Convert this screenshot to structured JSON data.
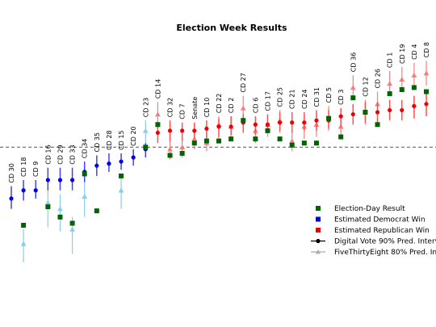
{
  "chart_data": {
    "type": "scatter",
    "title": "Election Week Results",
    "xlabel": "",
    "ylabel": "",
    "ylim": [
      -0.6,
      0.5
    ],
    "reference_line": 0,
    "colors": {
      "election_day": "#006400",
      "dem": "#0000ee",
      "rep": "#ee0000",
      "fte_dem": "#87ceeb",
      "fte_rep": "#f08080",
      "dem_interval": "#4040ff",
      "rep_interval": "#ff5050"
    },
    "legend": {
      "placement": "right",
      "entries": [
        {
          "label": "Election-Day Result",
          "icon": "square",
          "color": "#006400"
        },
        {
          "label": "Estimated Democrat Win",
          "icon": "square",
          "color": "#0000ee"
        },
        {
          "label": "Estimated Republican Win",
          "icon": "square",
          "color": "#ee0000"
        },
        {
          "label": "Digital Vote 90% Pred. Interval",
          "icon": "line-dot",
          "color": "#000000"
        },
        {
          "label": "FiveThirtyEight 80% Pred. Interval",
          "icon": "line-triangle",
          "color": "#aaaaaa"
        }
      ]
    },
    "districts": [
      {
        "label": "CD 30",
        "party": "D",
        "dv": -0.25,
        "dv_lo": -0.3,
        "dv_hi": -0.19,
        "fte": null,
        "result": null
      },
      {
        "label": "CD 18",
        "party": "D",
        "dv": -0.21,
        "dv_lo": -0.26,
        "dv_hi": -0.16,
        "fte": -0.47,
        "fte_lo": -0.56,
        "fte_hi": -0.4,
        "result": -0.38
      },
      {
        "label": "CD 9",
        "party": "D",
        "dv": -0.21,
        "dv_lo": -0.25,
        "dv_hi": -0.16,
        "fte": null,
        "result": null
      },
      {
        "label": "CD 16",
        "party": "D",
        "dv": -0.16,
        "dv_lo": -0.21,
        "dv_hi": -0.1,
        "fte": -0.27,
        "fte_lo": -0.39,
        "fte_hi": -0.2,
        "result": -0.29
      },
      {
        "label": "CD 29",
        "party": "D",
        "dv": -0.16,
        "dv_lo": -0.21,
        "dv_hi": -0.1,
        "fte": -0.3,
        "fte_lo": -0.41,
        "fte_hi": -0.23,
        "result": -0.34
      },
      {
        "label": "CD 33",
        "party": "D",
        "dv": -0.16,
        "dv_lo": -0.21,
        "dv_hi": -0.1,
        "fte": -0.4,
        "fte_lo": -0.52,
        "fte_hi": -0.34,
        "result": -0.37
      },
      {
        "label": "CD 34",
        "party": "D",
        "dv": -0.12,
        "dv_lo": -0.17,
        "dv_hi": -0.07,
        "fte": -0.24,
        "fte_lo": -0.34,
        "fte_hi": -0.15,
        "result": -0.13
      },
      {
        "label": "CD 35",
        "party": "D",
        "dv": -0.09,
        "dv_lo": -0.14,
        "dv_hi": -0.04,
        "fte": null,
        "result": -0.31
      },
      {
        "label": "CD 28",
        "party": "D",
        "dv": -0.08,
        "dv_lo": -0.12,
        "dv_hi": -0.03,
        "fte": null,
        "result": null
      },
      {
        "label": "CD 15",
        "party": "D",
        "dv": -0.07,
        "dv_lo": -0.11,
        "dv_hi": -0.03,
        "fte": -0.21,
        "fte_lo": -0.3,
        "fte_hi": -0.14,
        "result": -0.14
      },
      {
        "label": "CD 20",
        "party": "D",
        "dv": -0.05,
        "dv_lo": -0.09,
        "dv_hi": -0.01,
        "fte": null,
        "result": null
      },
      {
        "label": "CD 23",
        "party": "D",
        "dv": -0.01,
        "dv_lo": -0.05,
        "dv_hi": 0.02,
        "fte": 0.08,
        "fte_lo": 0.0,
        "fte_hi": 0.13,
        "result": 0.0
      },
      {
        "label": "CD 14",
        "party": "R",
        "dv": 0.07,
        "dv_lo": 0.02,
        "dv_hi": 0.11,
        "fte": 0.16,
        "fte_lo": 0.08,
        "fte_hi": 0.22,
        "result": 0.11
      },
      {
        "label": "CD 32",
        "party": "R",
        "dv": 0.08,
        "dv_lo": 0.03,
        "dv_hi": 0.13,
        "fte": -0.01,
        "fte_lo": -0.06,
        "fte_hi": 0.04,
        "result": -0.04
      },
      {
        "label": "CD 7",
        "party": "R",
        "dv": 0.08,
        "dv_lo": 0.03,
        "dv_hi": 0.12,
        "fte": 0.0,
        "fte_lo": -0.05,
        "fte_hi": 0.05,
        "result": -0.03
      },
      {
        "label": "Senate",
        "party": "R",
        "dv": 0.08,
        "dv_lo": 0.04,
        "dv_hi": 0.12,
        "fte": 0.04,
        "fte_lo": -0.01,
        "fte_hi": 0.09,
        "result": 0.02
      },
      {
        "label": "CD 10",
        "party": "R",
        "dv": 0.09,
        "dv_lo": 0.04,
        "dv_hi": 0.13,
        "fte": 0.02,
        "fte_lo": -0.02,
        "fte_hi": 0.07,
        "result": 0.03
      },
      {
        "label": "CD 22",
        "party": "R",
        "dv": 0.1,
        "dv_lo": 0.05,
        "dv_hi": 0.14,
        "fte": 0.11,
        "fte_lo": 0.03,
        "fte_hi": 0.15,
        "result": 0.03
      },
      {
        "label": "CD 2",
        "party": "R",
        "dv": 0.1,
        "dv_lo": 0.06,
        "dv_hi": 0.15,
        "fte": 0.1,
        "fte_lo": 0.04,
        "fte_hi": 0.15,
        "result": 0.04
      },
      {
        "label": "CD 27",
        "party": "R",
        "dv": 0.12,
        "dv_lo": 0.07,
        "dv_hi": 0.16,
        "fte": 0.19,
        "fte_lo": 0.13,
        "fte_hi": 0.25,
        "result": 0.13
      },
      {
        "label": "CD 6",
        "party": "R",
        "dv": 0.11,
        "dv_lo": 0.06,
        "dv_hi": 0.15,
        "fte": 0.08,
        "fte_lo": 0.02,
        "fte_hi": 0.12,
        "result": 0.04
      },
      {
        "label": "CD 17",
        "party": "R",
        "dv": 0.11,
        "dv_lo": 0.07,
        "dv_hi": 0.16,
        "fte": 0.11,
        "fte_lo": 0.05,
        "fte_hi": 0.16,
        "result": 0.08
      },
      {
        "label": "CD 25",
        "party": "R",
        "dv": 0.12,
        "dv_lo": 0.08,
        "dv_hi": 0.17,
        "fte": 0.13,
        "fte_lo": 0.07,
        "fte_hi": 0.18,
        "result": 0.04
      },
      {
        "label": "CD 21",
        "party": "R",
        "dv": 0.12,
        "dv_lo": 0.07,
        "dv_hi": 0.17,
        "fte": 0.03,
        "fte_lo": -0.02,
        "fte_hi": 0.08,
        "result": 0.01
      },
      {
        "label": "CD 24",
        "party": "R",
        "dv": 0.12,
        "dv_lo": 0.08,
        "dv_hi": 0.17,
        "fte": 0.1,
        "fte_lo": 0.04,
        "fte_hi": 0.15,
        "result": 0.02
      },
      {
        "label": "CD 31",
        "party": "R",
        "dv": 0.13,
        "dv_lo": 0.08,
        "dv_hi": 0.18,
        "fte": 0.11,
        "fte_lo": 0.05,
        "fte_hi": 0.16,
        "result": 0.02
      },
      {
        "label": "CD 5",
        "party": "R",
        "dv": 0.13,
        "dv_lo": 0.09,
        "dv_hi": 0.18,
        "fte": 0.14,
        "fte_lo": 0.08,
        "fte_hi": 0.2,
        "result": 0.14
      },
      {
        "label": "CD 3",
        "party": "R",
        "dv": 0.15,
        "dv_lo": 0.1,
        "dv_hi": 0.19,
        "fte": 0.1,
        "fte_lo": 0.04,
        "fte_hi": 0.15,
        "result": 0.05
      },
      {
        "label": "CD 36",
        "party": "R",
        "dv": 0.16,
        "dv_lo": 0.11,
        "dv_hi": 0.21,
        "fte": 0.29,
        "fte_lo": 0.23,
        "fte_hi": 0.35,
        "result": 0.24
      },
      {
        "label": "CD 12",
        "party": "R",
        "dv": 0.17,
        "dv_lo": 0.12,
        "dv_hi": 0.22,
        "fte": 0.17,
        "fte_lo": 0.11,
        "fte_hi": 0.23,
        "result": 0.17
      },
      {
        "label": "CD 26",
        "party": "R",
        "dv": 0.17,
        "dv_lo": 0.12,
        "dv_hi": 0.22,
        "fte": 0.21,
        "fte_lo": 0.15,
        "fte_hi": 0.27,
        "result": 0.11
      },
      {
        "label": "CD 1",
        "party": "R",
        "dv": 0.18,
        "dv_lo": 0.13,
        "dv_hi": 0.23,
        "fte": 0.31,
        "fte_lo": 0.25,
        "fte_hi": 0.37,
        "result": 0.26
      },
      {
        "label": "CD 19",
        "party": "R",
        "dv": 0.18,
        "dv_lo": 0.13,
        "dv_hi": 0.23,
        "fte": 0.33,
        "fte_lo": 0.27,
        "fte_hi": 0.39,
        "result": 0.28
      },
      {
        "label": "CD 4",
        "party": "R",
        "dv": 0.2,
        "dv_lo": 0.14,
        "dv_hi": 0.25,
        "fte": 0.35,
        "fte_lo": 0.29,
        "fte_hi": 0.41,
        "result": 0.29
      },
      {
        "label": "CD 8",
        "party": "R",
        "dv": 0.21,
        "dv_lo": 0.15,
        "dv_hi": 0.27,
        "fte": 0.36,
        "fte_lo": 0.3,
        "fte_hi": 0.42,
        "result": 0.27
      }
    ]
  }
}
